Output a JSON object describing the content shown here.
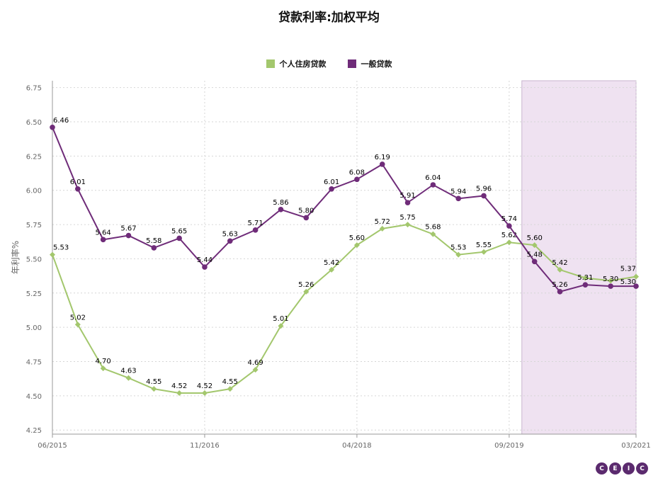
{
  "chart_data": {
    "type": "line",
    "title": "贷款利率:加权平均",
    "ylabel": "年利率%",
    "xlabel": "",
    "x_tick_labels": [
      "06/2015",
      "11/2016",
      "04/2018",
      "09/2019",
      "03/2021"
    ],
    "y_tick_labels": [
      "4.25",
      "4.50",
      "4.75",
      "5.00",
      "5.25",
      "5.50",
      "5.75",
      "6.00",
      "6.25",
      "6.50",
      "6.75"
    ],
    "ylim": [
      4.25,
      6.8
    ],
    "grid": true,
    "legend_position": "top-center",
    "highlight_region": {
      "start_index": 19,
      "end_index": 23,
      "color": "#efe2f1"
    },
    "series": [
      {
        "name": "个人住房贷款",
        "color": "#a3c76d",
        "marker": "diamond",
        "values": [
          5.53,
          5.02,
          4.7,
          4.63,
          4.55,
          4.52,
          4.52,
          4.55,
          4.69,
          5.01,
          5.26,
          5.42,
          5.6,
          5.72,
          5.75,
          5.68,
          5.53,
          5.55,
          5.62,
          5.6,
          5.42,
          5.36,
          5.34,
          5.37
        ],
        "labels": [
          "5.53",
          "5.02",
          "4.70",
          "4.63",
          "4.55",
          "4.52",
          "4.52",
          "4.55",
          "4.69",
          "5.01",
          "5.26",
          "5.42",
          "5.60",
          "5.72",
          "5.75",
          "5.68",
          "5.53",
          "5.55",
          "5.62",
          "5.60",
          "5.42",
          "",
          "",
          "5.37"
        ]
      },
      {
        "name": "一般贷款",
        "color": "#6f2c79",
        "marker": "circle",
        "values": [
          6.46,
          6.01,
          5.64,
          5.67,
          5.58,
          5.65,
          5.44,
          5.63,
          5.71,
          5.86,
          5.8,
          6.01,
          6.08,
          6.19,
          5.91,
          6.04,
          5.94,
          5.96,
          5.74,
          5.48,
          5.26,
          5.31,
          5.3,
          5.3
        ],
        "labels": [
          "6.46",
          "6.01",
          "5.64",
          "5.67",
          "5.58",
          "5.65",
          "5.44",
          "5.63",
          "5.71",
          "5.86",
          "5.80",
          "6.01",
          "6.08",
          "6.19",
          "5.91",
          "6.04",
          "5.94",
          "5.96",
          "5.74",
          "5.48",
          "5.26",
          "5.31",
          "5.30",
          "5.30"
        ]
      }
    ]
  },
  "branding": {
    "logo_letters": [
      "C",
      "E",
      "I",
      "C"
    ]
  }
}
